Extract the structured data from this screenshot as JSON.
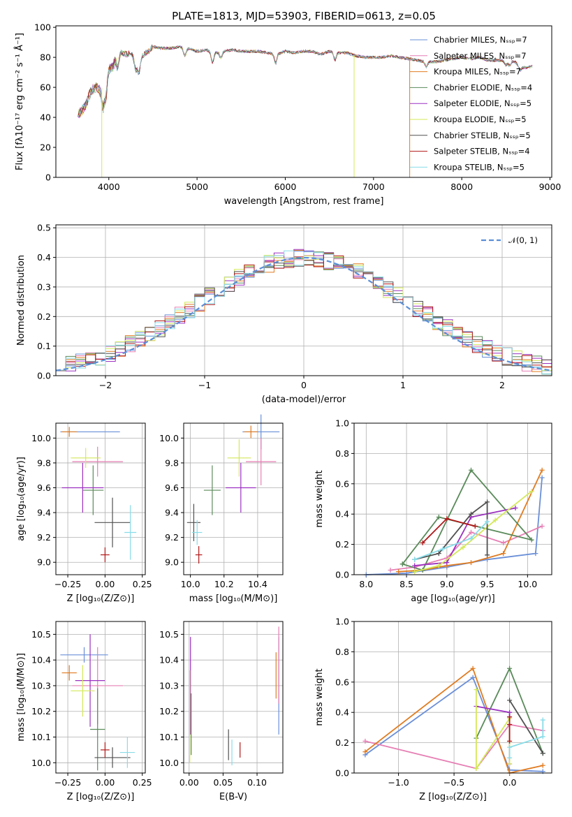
{
  "chart_data": [
    {
      "id": "spectrum",
      "type": "line",
      "title": "PLATE=1813, MJD=53903, FIBERID=0613, z=0.05",
      "xlabel": "wavelength [Angstrom, rest frame]",
      "ylabel": "Flux [fλ10⁻¹⁷ erg cm⁻² s⁻¹ Å⁻¹]",
      "xlim": [
        3400,
        9020
      ],
      "ylim": [
        0,
        101
      ],
      "x_ticks": [
        4000,
        5000,
        6000,
        7000,
        8000,
        9000
      ],
      "y_ticks": [
        0,
        20,
        40,
        60,
        80,
        100
      ],
      "grid": false,
      "legend_position": "top-right",
      "legend": [
        {
          "label": "Chabrier MILES, Nₛₛₚ=7",
          "color": "#6a8fd8"
        },
        {
          "label": "Salpeter MILES, Nₛₛₚ=7",
          "color": "#e67fb4"
        },
        {
          "label": "Kroupa MILES, Nₛₛₚ=7",
          "color": "#e07b20"
        },
        {
          "label": "Chabrier ELODIE, Nₛₛₚ=4",
          "color": "#5a8a5a"
        },
        {
          "label": "Salpeter ELODIE, Nₛₛₚ=5",
          "color": "#9b30c0"
        },
        {
          "label": "Kroupa ELODIE, Nₛₛₚ=5",
          "color": "#d4e85a"
        },
        {
          "label": "Chabrier STELIB, Nₛₛₚ=5",
          "color": "#505050"
        },
        {
          "label": "Salpeter STELIB, Nₛₛₚ=4",
          "color": "#b01818"
        },
        {
          "label": "Kroupa STELIB, Nₛₛₚ=5",
          "color": "#88dce8"
        }
      ],
      "continuum": [
        [
          3650,
          42
        ],
        [
          3700,
          45
        ],
        [
          3750,
          50
        ],
        [
          3800,
          58
        ],
        [
          3850,
          60
        ],
        [
          3900,
          58
        ],
        [
          3950,
          62
        ],
        [
          4000,
          72
        ],
        [
          4050,
          74
        ],
        [
          4100,
          84
        ],
        [
          4150,
          83
        ],
        [
          4200,
          82
        ],
        [
          4250,
          83
        ],
        [
          4300,
          80
        ],
        [
          4350,
          79
        ],
        [
          4400,
          82
        ],
        [
          4450,
          84
        ],
        [
          4500,
          87
        ],
        [
          4600,
          86
        ],
        [
          4700,
          86
        ],
        [
          4800,
          87
        ],
        [
          4900,
          86
        ],
        [
          5000,
          84
        ],
        [
          5100,
          85
        ],
        [
          5200,
          83
        ],
        [
          5300,
          84
        ],
        [
          5400,
          85
        ],
        [
          5500,
          84
        ],
        [
          5600,
          84
        ],
        [
          5700,
          84
        ],
        [
          5800,
          83
        ],
        [
          5900,
          82
        ],
        [
          6000,
          84
        ],
        [
          6100,
          83
        ],
        [
          6200,
          84
        ],
        [
          6300,
          84
        ],
        [
          6400,
          82
        ],
        [
          6500,
          84
        ],
        [
          6600,
          83
        ],
        [
          6700,
          83
        ],
        [
          6800,
          81
        ],
        [
          6900,
          80
        ],
        [
          7000,
          80
        ],
        [
          7100,
          80
        ],
        [
          7200,
          81
        ],
        [
          7300,
          80
        ],
        [
          7400,
          79
        ],
        [
          7500,
          78
        ],
        [
          7600,
          77
        ],
        [
          7700,
          77
        ],
        [
          7800,
          78
        ],
        [
          7900,
          79
        ],
        [
          8000,
          80
        ],
        [
          8100,
          79
        ],
        [
          8200,
          80
        ],
        [
          8300,
          78
        ],
        [
          8400,
          78
        ],
        [
          8500,
          78
        ],
        [
          8600,
          77
        ],
        [
          8700,
          73
        ],
        [
          8800,
          74
        ]
      ],
      "dropouts": [
        {
          "x": 3920,
          "color": "#d4e85a"
        },
        {
          "x": 6780,
          "color": "#d4e85a"
        },
        {
          "x": 7410,
          "color": "#e07b20"
        }
      ]
    },
    {
      "id": "residuals",
      "type": "line",
      "xlabel": "(data-model)/error",
      "ylabel": "Normed distribution",
      "xlim": [
        -2.5,
        2.5
      ],
      "ylim": [
        0,
        0.51
      ],
      "x_ticks": [
        -2,
        -1,
        0,
        1,
        2
      ],
      "y_ticks": [
        0.0,
        0.1,
        0.2,
        0.3,
        0.4,
        0.5
      ],
      "grid": true,
      "legend_position": "top-right",
      "legend": [
        {
          "label": "𝒩(0, 1)",
          "color": "#5a8fd8"
        }
      ]
    },
    {
      "id": "age_vs_Z",
      "type": "scatter",
      "xlabel": "Z [log₁₀(Z/Z⊙)]",
      "ylabel": "age  [log₁₀(age/yr)]",
      "xlim": [
        -0.33,
        0.27
      ],
      "ylim": [
        8.9,
        10.12
      ],
      "x_ticks": [
        -0.25,
        0.0,
        0.25
      ],
      "y_ticks": [
        9.0,
        9.2,
        9.4,
        9.6,
        9.8,
        10.0
      ],
      "grid": true,
      "points": [
        {
          "x": -0.1,
          "y": 10.05,
          "xerr": 0.2,
          "yerr": 0.0,
          "color": "#6a8fd8"
        },
        {
          "x": -0.05,
          "y": 9.81,
          "xerr": 0.17,
          "yerr": 0.12,
          "color": "#e67fb4"
        },
        {
          "x": -0.24,
          "y": 10.05,
          "xerr": 0.05,
          "yerr": 0.04,
          "color": "#e07b20"
        },
        {
          "x": -0.08,
          "y": 9.58,
          "xerr": 0.07,
          "yerr": 0.2,
          "color": "#5a8a5a"
        },
        {
          "x": -0.15,
          "y": 9.6,
          "xerr": 0.14,
          "yerr": 0.2,
          "color": "#9b30c0"
        },
        {
          "x": -0.13,
          "y": 9.84,
          "xerr": 0.1,
          "yerr": 0.08,
          "color": "#d4e85a"
        },
        {
          "x": 0.05,
          "y": 9.32,
          "xerr": 0.12,
          "yerr": 0.2,
          "color": "#505050"
        },
        {
          "x": 0.0,
          "y": 9.06,
          "xerr": 0.03,
          "yerr": 0.06,
          "color": "#b01818"
        },
        {
          "x": 0.17,
          "y": 9.24,
          "xerr": 0.04,
          "yerr": 0.22,
          "color": "#88dce8"
        }
      ]
    },
    {
      "id": "age_vs_mass",
      "type": "scatter",
      "xlabel": "mass [log₁₀(M/M⊙)]",
      "ylabel": "",
      "xlim": [
        9.96,
        10.55
      ],
      "ylim": [
        8.9,
        10.12
      ],
      "x_ticks": [
        10.0,
        10.2,
        10.4
      ],
      "y_ticks": [
        9.0,
        9.2,
        9.4,
        9.6,
        9.8,
        10.0
      ],
      "grid": true,
      "points": [
        {
          "x": 10.42,
          "y": 10.05,
          "xerr": 0.11,
          "yerr": 0.14,
          "color": "#6a8fd8"
        },
        {
          "x": 10.42,
          "y": 9.81,
          "xerr": 0.09,
          "yerr": 0.19,
          "color": "#e67fb4"
        },
        {
          "x": 10.36,
          "y": 10.05,
          "xerr": 0.04,
          "yerr": 0.05,
          "color": "#e07b20"
        },
        {
          "x": 10.13,
          "y": 9.58,
          "xerr": 0.05,
          "yerr": 0.2,
          "color": "#5a8a5a"
        },
        {
          "x": 10.3,
          "y": 9.6,
          "xerr": 0.09,
          "yerr": 0.2,
          "color": "#9b30c0"
        },
        {
          "x": 10.29,
          "y": 9.84,
          "xerr": 0.07,
          "yerr": 0.15,
          "color": "#d4e85a"
        },
        {
          "x": 10.02,
          "y": 9.32,
          "xerr": 0.04,
          "yerr": 0.15,
          "color": "#505050"
        },
        {
          "x": 10.05,
          "y": 9.06,
          "xerr": 0.02,
          "yerr": 0.07,
          "color": "#b01818"
        },
        {
          "x": 10.04,
          "y": 9.24,
          "xerr": 0.03,
          "yerr": 0.1,
          "color": "#88dce8"
        }
      ]
    },
    {
      "id": "weight_vs_age",
      "type": "line",
      "xlabel": "age  [log₁₀(age/yr)]",
      "ylabel": "mass weight",
      "xlim": [
        7.85,
        10.3
      ],
      "ylim": [
        0,
        1
      ],
      "x_ticks": [
        8.0,
        8.5,
        9.0,
        9.5,
        10.0
      ],
      "y_ticks": [
        0.0,
        0.2,
        0.4,
        0.6,
        0.8,
        1.0
      ],
      "grid": true,
      "series": [
        {
          "color": "#6a8fd8",
          "x": [
            8.0,
            8.5,
            9.0,
            9.5,
            10.1,
            10.18
          ],
          "y": [
            0.0,
            0.01,
            0.05,
            0.1,
            0.14,
            0.64
          ]
        },
        {
          "color": "#e67fb4",
          "x": [
            8.3,
            8.6,
            9.0,
            9.3,
            9.7,
            10.18
          ],
          "y": [
            0.03,
            0.05,
            0.11,
            0.28,
            0.21,
            0.32
          ]
        },
        {
          "color": "#e07b20",
          "x": [
            8.4,
            8.7,
            9.0,
            9.3,
            9.7,
            10.18
          ],
          "y": [
            0.02,
            0.03,
            0.06,
            0.08,
            0.14,
            0.69
          ]
        },
        {
          "color": "#5a8a5a",
          "x": [
            8.45,
            8.7,
            9.3,
            10.05,
            8.9,
            8.45
          ],
          "y": [
            0.07,
            0.03,
            0.69,
            0.23,
            0.38,
            0.07
          ]
        },
        {
          "color": "#9b30c0",
          "x": [
            8.6,
            9.0,
            9.3,
            9.85
          ],
          "y": [
            0.06,
            0.08,
            0.38,
            0.44
          ]
        },
        {
          "color": "#d4e85a",
          "x": [
            8.6,
            8.9,
            9.2,
            9.6,
            10.05
          ],
          "y": [
            0.02,
            0.06,
            0.18,
            0.36,
            0.55
          ]
        },
        {
          "color": "#505050",
          "x": [
            8.6,
            8.9,
            9.3,
            9.5,
            9.5
          ],
          "y": [
            0.1,
            0.14,
            0.4,
            0.48,
            0.13
          ]
        },
        {
          "color": "#b01818",
          "x": [
            8.7,
            9.0,
            9.35
          ],
          "y": [
            0.21,
            0.37,
            0.32
          ]
        },
        {
          "color": "#88dce8",
          "x": [
            8.6,
            8.95,
            9.3,
            9.5
          ],
          "y": [
            0.1,
            0.17,
            0.24,
            0.35
          ]
        }
      ]
    },
    {
      "id": "mass_vs_Z",
      "type": "scatter",
      "xlabel": "Z [log₁₀(Z/Z⊙)]",
      "ylabel": "mass [log₁₀(M/M⊙)]",
      "xlim": [
        -0.33,
        0.27
      ],
      "ylim": [
        9.96,
        10.55
      ],
      "x_ticks": [
        -0.25,
        0.0,
        0.25
      ],
      "y_ticks": [
        10.0,
        10.1,
        10.2,
        10.3,
        10.4,
        10.5
      ],
      "grid": true,
      "points": [
        {
          "x": -0.14,
          "y": 10.42,
          "xerr": 0.16,
          "yerr": 0.03,
          "color": "#6a8fd8"
        },
        {
          "x": -0.05,
          "y": 10.3,
          "xerr": 0.17,
          "yerr": 0.15,
          "color": "#e67fb4"
        },
        {
          "x": -0.24,
          "y": 10.35,
          "xerr": 0.05,
          "yerr": 0.03,
          "color": "#e07b20"
        },
        {
          "x": -0.05,
          "y": 10.13,
          "xerr": 0.05,
          "yerr": 0.16,
          "color": "#5a8a5a"
        },
        {
          "x": -0.1,
          "y": 10.32,
          "xerr": 0.1,
          "yerr": 0.18,
          "color": "#9b30c0"
        },
        {
          "x": -0.15,
          "y": 10.28,
          "xerr": 0.08,
          "yerr": 0.1,
          "color": "#d4e85a"
        },
        {
          "x": 0.05,
          "y": 10.02,
          "xerr": 0.12,
          "yerr": 0.04,
          "color": "#505050"
        },
        {
          "x": 0.0,
          "y": 10.05,
          "xerr": 0.03,
          "yerr": 0.03,
          "color": "#b01818"
        },
        {
          "x": 0.15,
          "y": 10.04,
          "xerr": 0.05,
          "yerr": 0.06,
          "color": "#88dce8"
        }
      ]
    },
    {
      "id": "mass_vs_EBV",
      "type": "scatter",
      "xlabel": "E(B-V)",
      "ylabel": "",
      "xlim": [
        -0.008,
        0.138
      ],
      "ylim": [
        9.96,
        10.55
      ],
      "x_ticks": [
        0.0,
        0.05,
        0.1
      ],
      "y_ticks": [
        10.0,
        10.1,
        10.2,
        10.3,
        10.4,
        10.5
      ],
      "grid": true,
      "points": [
        {
          "x": 0.132,
          "y": 10.3,
          "xerr": 0.0,
          "yerr": 0.19,
          "color": "#6a8fd8"
        },
        {
          "x": 0.132,
          "y": 10.38,
          "xerr": 0.0,
          "yerr": 0.15,
          "color": "#e67fb4"
        },
        {
          "x": 0.128,
          "y": 10.34,
          "xerr": 0.0,
          "yerr": 0.09,
          "color": "#e07b20"
        },
        {
          "x": 0.003,
          "y": 10.15,
          "xerr": 0.0,
          "yerr": 0.12,
          "color": "#5a8a5a"
        },
        {
          "x": 0.002,
          "y": 10.3,
          "xerr": 0.0,
          "yerr": 0.19,
          "color": "#9b30c0"
        },
        {
          "x": 0.001,
          "y": 10.18,
          "xerr": 0.0,
          "yerr": 0.18,
          "color": "#d4e85a"
        },
        {
          "x": 0.058,
          "y": 10.07,
          "xerr": 0.0,
          "yerr": 0.06,
          "color": "#505050"
        },
        {
          "x": 0.075,
          "y": 10.05,
          "xerr": 0.0,
          "yerr": 0.03,
          "color": "#b01818"
        },
        {
          "x": 0.063,
          "y": 10.04,
          "xerr": 0.0,
          "yerr": 0.05,
          "color": "#88dce8"
        }
      ]
    },
    {
      "id": "weight_vs_Z",
      "type": "line",
      "xlabel": "Z [log₁₀(Z/Z⊙)]",
      "ylabel": "mass weight",
      "xlim": [
        -1.4,
        0.38
      ],
      "ylim": [
        0,
        1
      ],
      "x_ticks": [
        -1.0,
        -0.5,
        0.0
      ],
      "y_ticks": [
        0.0,
        0.2,
        0.4,
        0.6,
        0.8,
        1.0
      ],
      "grid": true,
      "series": [
        {
          "color": "#6a8fd8",
          "x": [
            -1.3,
            -0.33,
            0.0,
            0.3
          ],
          "y": [
            0.12,
            0.63,
            0.02,
            0.01
          ]
        },
        {
          "color": "#e67fb4",
          "x": [
            -1.3,
            -0.3,
            0.0,
            0.3
          ],
          "y": [
            0.21,
            0.03,
            0.32,
            0.28
          ]
        },
        {
          "color": "#e07b20",
          "x": [
            -1.3,
            -0.33,
            0.0,
            0.3
          ],
          "y": [
            0.14,
            0.69,
            0.0,
            0.05
          ]
        },
        {
          "color": "#5a8a5a",
          "x": [
            -0.3,
            0.0,
            0.3
          ],
          "y": [
            0.23,
            0.69,
            0.13
          ]
        },
        {
          "color": "#9b30c0",
          "x": [
            -0.3,
            0.0,
            0.0
          ],
          "y": [
            0.44,
            0.4,
            0.06
          ]
        },
        {
          "color": "#d4e85a",
          "x": [
            -0.3,
            -0.3,
            0.0,
            0.0
          ],
          "y": [
            0.55,
            0.03,
            0.36,
            0.06
          ]
        },
        {
          "color": "#505050",
          "x": [
            0.0,
            0.3
          ],
          "y": [
            0.48,
            0.13
          ]
        },
        {
          "color": "#b01818",
          "x": [
            0.0,
            0.0,
            0.0
          ],
          "y": [
            0.21,
            0.32,
            0.37
          ]
        },
        {
          "color": "#88dce8",
          "x": [
            0.0,
            0.0,
            0.3,
            0.3
          ],
          "y": [
            0.1,
            0.17,
            0.24,
            0.35
          ]
        }
      ]
    }
  ]
}
